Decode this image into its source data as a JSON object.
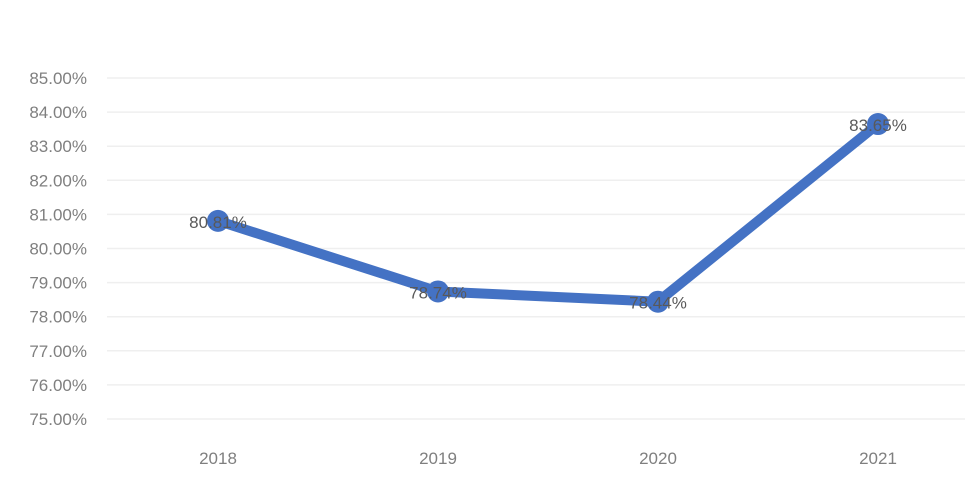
{
  "chart_data": {
    "type": "line",
    "title": "",
    "xlabel": "",
    "ylabel": "",
    "categories": [
      "2018",
      "2019",
      "2020",
      "2021"
    ],
    "series": [
      {
        "values": [
          80.81,
          78.74,
          78.44,
          83.65
        ],
        "labels": [
          "80.81%",
          "78.74%",
          "78.44%",
          "83.65%"
        ],
        "color": "#4472C4"
      }
    ],
    "ylim": [
      75,
      85
    ],
    "y_ticks": [
      "75.00%",
      "76.00%",
      "77.00%",
      "78.00%",
      "79.00%",
      "80.00%",
      "81.00%",
      "82.00%",
      "83.00%",
      "84.00%",
      "85.00%"
    ],
    "grid": true,
    "legend": "none",
    "colors": {
      "line": "#4472C4",
      "grid": "#efefef",
      "tick_text": "#7f7f7f",
      "label_text": "#595959"
    }
  }
}
